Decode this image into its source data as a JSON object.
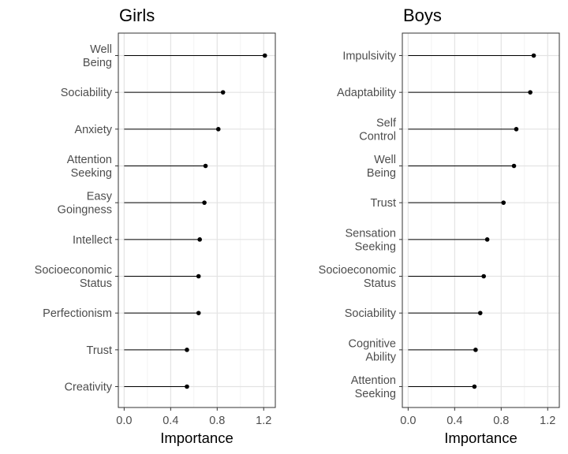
{
  "chart_data": [
    {
      "type": "lollipop",
      "title": "Girls",
      "xlabel": "Importance",
      "ylabel": "",
      "xlim": [
        -0.05,
        1.3
      ],
      "xticks": [
        0.0,
        0.4,
        0.8,
        1.2
      ],
      "xtick_labels": [
        "0.0",
        "0.4",
        "0.8",
        "1.2"
      ],
      "grid": true,
      "categories": [
        [
          "Well",
          "Being"
        ],
        [
          "Sociability"
        ],
        [
          "Anxiety"
        ],
        [
          "Attention",
          "Seeking"
        ],
        [
          "Easy",
          "Goingness"
        ],
        [
          "Intellect"
        ],
        [
          "Socioeconomic",
          "Status"
        ],
        [
          "Perfectionism"
        ],
        [
          "Trust"
        ],
        [
          "Creativity"
        ]
      ],
      "values": [
        1.21,
        0.85,
        0.81,
        0.7,
        0.69,
        0.65,
        0.64,
        0.64,
        0.54,
        0.54
      ]
    },
    {
      "type": "lollipop",
      "title": "Boys",
      "xlabel": "Importance",
      "ylabel": "",
      "xlim": [
        -0.05,
        1.3
      ],
      "xticks": [
        0.0,
        0.4,
        0.8,
        1.2
      ],
      "xtick_labels": [
        "0.0",
        "0.4",
        "0.8",
        "1.2"
      ],
      "grid": true,
      "categories": [
        [
          "Impulsivity"
        ],
        [
          "Adaptability"
        ],
        [
          "Self",
          "Control"
        ],
        [
          "Well",
          "Being"
        ],
        [
          "Trust"
        ],
        [
          "Sensation",
          "Seeking"
        ],
        [
          "Socioeconomic",
          "Status"
        ],
        [
          "Sociability"
        ],
        [
          "Cognitive",
          "Ability"
        ],
        [
          "Attention",
          "Seeking"
        ]
      ],
      "values": [
        1.08,
        1.05,
        0.93,
        0.91,
        0.82,
        0.68,
        0.65,
        0.62,
        0.58,
        0.57
      ]
    }
  ]
}
